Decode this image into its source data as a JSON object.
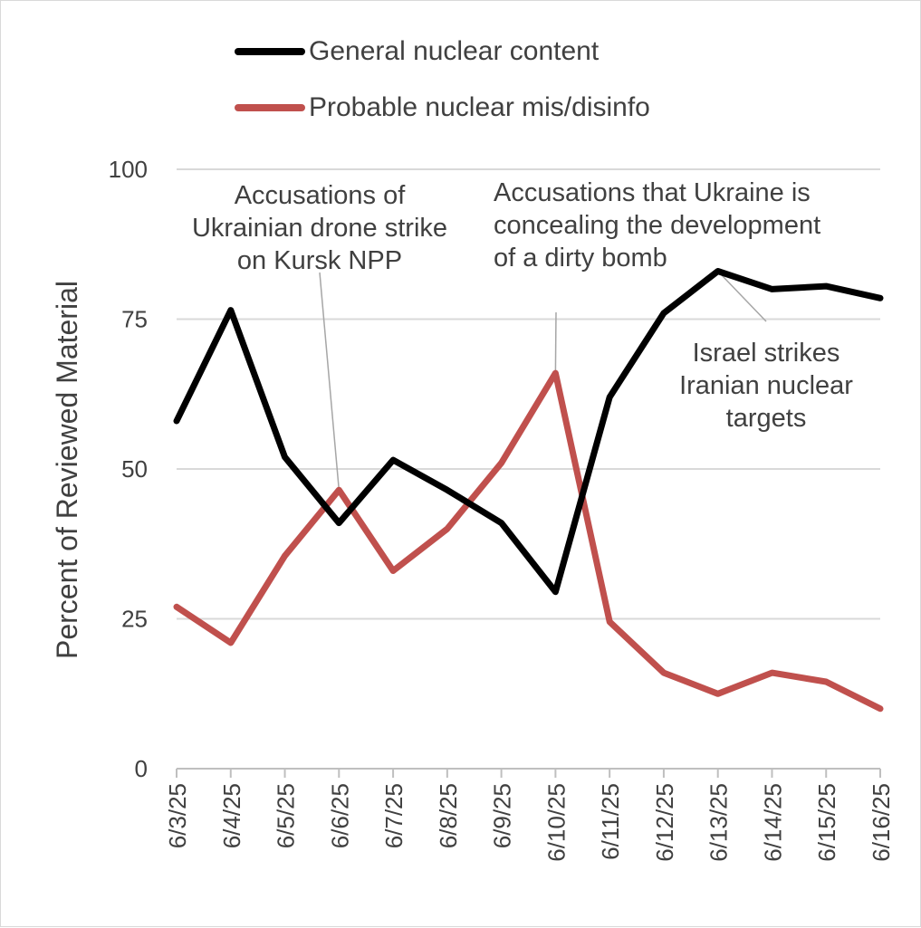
{
  "chart_data": {
    "type": "line",
    "title": "",
    "xlabel": "",
    "ylabel": "Percent of Reviewed Material",
    "ylim": [
      0,
      100
    ],
    "yticks": [
      0,
      25,
      50,
      75,
      100
    ],
    "grid": true,
    "legend_position": "top",
    "categories": [
      "6/3/25",
      "6/4/25",
      "6/5/25",
      "6/6/25",
      "6/7/25",
      "6/8/25",
      "6/9/25",
      "6/10/25",
      "6/11/25",
      "6/12/25",
      "6/13/25",
      "6/14/25",
      "6/15/25",
      "6/16/25"
    ],
    "series": [
      {
        "name": "General nuclear content",
        "color": "#000000",
        "values": [
          58,
          76.5,
          52,
          41,
          51.5,
          46.5,
          41,
          29.5,
          62,
          76,
          83,
          80,
          80.5,
          78.5
        ]
      },
      {
        "name": "Probable nuclear mis/disinfo",
        "color": "#c0504d",
        "values": [
          27,
          21,
          35.5,
          46.5,
          33,
          40,
          51,
          66,
          24.5,
          16,
          12.5,
          16,
          14.5,
          10
        ]
      }
    ],
    "annotations": [
      {
        "lines": [
          "Accusations of",
          "Ukrainian drone strike",
          "on Kursk NPP"
        ],
        "date": "6/6/25",
        "series": 1
      },
      {
        "lines": [
          "Accusations that Ukraine is",
          "concealing the development",
          "of a dirty bomb"
        ],
        "date": "6/10/25",
        "series": 1
      },
      {
        "lines": [
          "Israel strikes",
          "Iranian nuclear",
          "targets"
        ],
        "date": "6/13/25",
        "series": 0
      }
    ]
  }
}
